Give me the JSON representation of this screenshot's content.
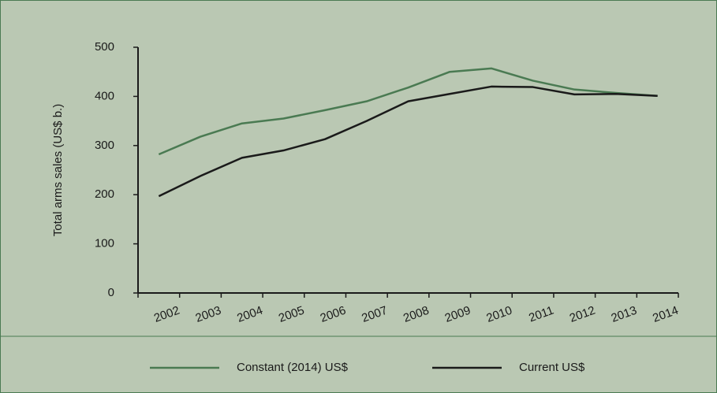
{
  "chart_data": {
    "type": "line",
    "y_label": "Total arms sales (US$ b.)",
    "categories": [
      "2002",
      "2003",
      "2004",
      "2005",
      "2006",
      "2007",
      "2008",
      "2009",
      "2010",
      "2011",
      "2012",
      "2013",
      "2014"
    ],
    "series": [
      {
        "name": "Constant (2014) US$",
        "color": "#4a7a52",
        "values": [
          282,
          318,
          345,
          355,
          372,
          390,
          418,
          450,
          457,
          432,
          414,
          407,
          401
        ]
      },
      {
        "name": "Current US$",
        "color": "#1a1a1a",
        "values": [
          197,
          238,
          275,
          290,
          313,
          350,
          390,
          405,
          420,
          419,
          404,
          405,
          401
        ]
      }
    ],
    "ylim": [
      0,
      500
    ],
    "yticks": [
      0,
      100,
      200,
      300,
      400,
      500
    ],
    "legend": "bottom"
  }
}
